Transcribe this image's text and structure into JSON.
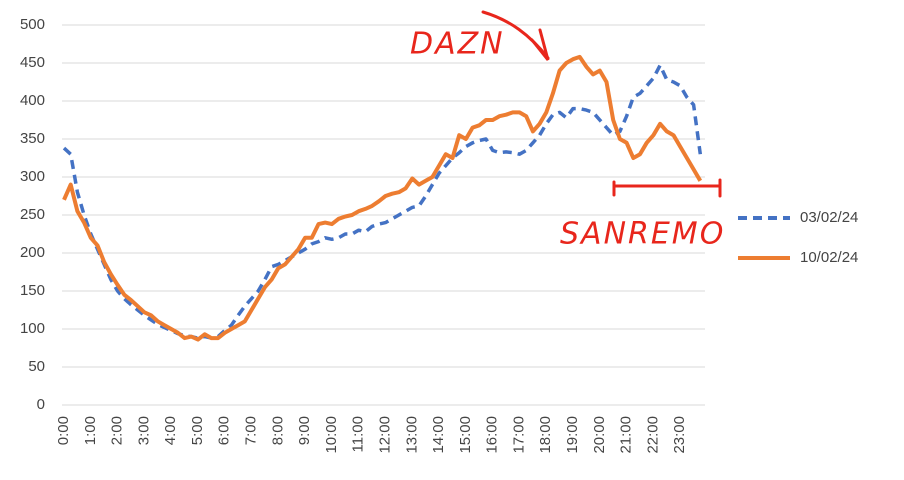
{
  "chart_data": {
    "type": "line",
    "categories": [
      "0:00",
      null,
      null,
      null,
      "1:00",
      null,
      null,
      null,
      "2:00",
      null,
      null,
      null,
      "3:00",
      null,
      null,
      null,
      "4:00",
      null,
      null,
      null,
      "5:00",
      null,
      null,
      null,
      "6:00",
      null,
      null,
      null,
      "7:00",
      null,
      null,
      null,
      "8:00",
      null,
      null,
      null,
      "9:00",
      null,
      null,
      null,
      "10:00",
      null,
      null,
      null,
      "11:00",
      null,
      null,
      null,
      "12:00",
      null,
      null,
      null,
      "13:00",
      null,
      null,
      null,
      "14:00",
      null,
      null,
      null,
      "15:00",
      null,
      null,
      null,
      "16:00",
      null,
      null,
      null,
      "17:00",
      null,
      null,
      null,
      "18:00",
      null,
      null,
      null,
      "19:00",
      null,
      null,
      null,
      "20:00",
      null,
      null,
      null,
      "21:00",
      null,
      null,
      null,
      "22:00",
      null,
      null,
      null,
      "23:00",
      null,
      null,
      null
    ],
    "series": [
      {
        "name": "03/02/24",
        "color": "#4472c4",
        "dashed": true,
        "values": [
          338,
          330,
          280,
          250,
          225,
          205,
          185,
          165,
          150,
          140,
          132,
          125,
          118,
          112,
          106,
          102,
          98,
          94,
          91,
          90,
          88,
          90,
          88,
          90,
          98,
          105,
          118,
          130,
          140,
          150,
          165,
          182,
          185,
          190,
          195,
          200,
          205,
          212,
          215,
          220,
          218,
          220,
          225,
          225,
          230,
          228,
          235,
          238,
          240,
          245,
          250,
          255,
          260,
          262,
          275,
          290,
          305,
          315,
          325,
          332,
          340,
          345,
          348,
          350,
          335,
          332,
          333,
          332,
          330,
          335,
          345,
          355,
          370,
          382,
          385,
          378,
          390,
          390,
          388,
          385,
          375,
          365,
          355,
          360,
          380,
          405,
          410,
          420,
          430,
          447,
          428,
          425,
          420,
          405,
          395,
          330
        ]
      },
      {
        "name": "10/02/24",
        "color": "#ed7d31",
        "dashed": false,
        "values": [
          270,
          290,
          255,
          240,
          220,
          210,
          188,
          172,
          158,
          145,
          138,
          130,
          122,
          118,
          110,
          105,
          100,
          95,
          88,
          90,
          86,
          93,
          88,
          88,
          95,
          100,
          105,
          110,
          125,
          140,
          155,
          165,
          180,
          185,
          195,
          205,
          220,
          220,
          238,
          240,
          238,
          245,
          248,
          250,
          255,
          258,
          262,
          268,
          275,
          278,
          280,
          285,
          298,
          290,
          295,
          300,
          315,
          330,
          325,
          355,
          350,
          365,
          368,
          375,
          375,
          380,
          382,
          385,
          385,
          380,
          360,
          370,
          385,
          410,
          440,
          450,
          455,
          458,
          445,
          435,
          440,
          425,
          375,
          350,
          345,
          325,
          330,
          345,
          355,
          370,
          360,
          355,
          340,
          325,
          310,
          295
        ]
      }
    ],
    "ylim": [
      0,
      500
    ],
    "yticks": [
      0,
      50,
      100,
      150,
      200,
      250,
      300,
      350,
      400,
      450,
      500
    ],
    "grid": true,
    "annotations": [
      "DAZN",
      "SANREMO"
    ]
  }
}
